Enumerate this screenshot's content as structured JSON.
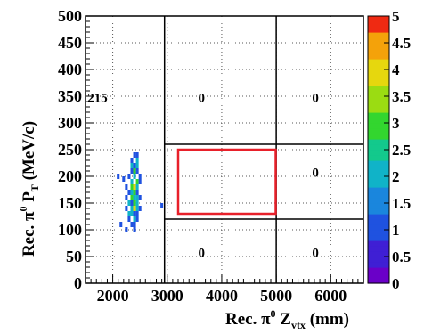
{
  "chart_data": {
    "type": "heatmap",
    "title": "",
    "xlabel": "Rec. π⁰ Z_vtx (mm)",
    "ylabel": "Rec. π⁰ P_T (MeV/c)",
    "xlabel_parts": {
      "main": "Rec. π",
      "sup": "0",
      "mid": " Z",
      "sub": "vtx",
      "tail": " (mm)"
    },
    "ylabel_parts": {
      "main": "Rec. π",
      "sup": "0",
      "mid": " P",
      "sub": "T",
      "tail": " (MeV/c)"
    },
    "xlim": [
      1500,
      6600
    ],
    "ylim": [
      0,
      500
    ],
    "zlim": [
      0,
      5
    ],
    "x_ticks": [
      2000,
      3000,
      4000,
      5000,
      6000
    ],
    "x_tick_labels": [
      "2000",
      "3000",
      "4000",
      "5000",
      "6000"
    ],
    "y_ticks": [
      0,
      50,
      100,
      150,
      200,
      250,
      300,
      350,
      400,
      450,
      500
    ],
    "y_tick_labels": [
      "0",
      "50",
      "100",
      "150",
      "200",
      "250",
      "300",
      "350",
      "400",
      "450",
      "500"
    ],
    "z_ticks": [
      0,
      0.5,
      1,
      1.5,
      2,
      2.5,
      3,
      3.5,
      4,
      4.5,
      5
    ],
    "z_tick_labels": [
      "0",
      "0.5",
      "1",
      "1.5",
      "2",
      "2.5",
      "3",
      "3.5",
      "4",
      "4.5",
      "5"
    ],
    "grid": true,
    "region_lines": {
      "vertical_x": [
        2950,
        5000
      ],
      "horizontal_y": [
        120,
        260
      ]
    },
    "signal_box": {
      "x": [
        3200,
        4990
      ],
      "y": [
        130,
        250
      ],
      "color": "#e8202a"
    },
    "region_counts": [
      {
        "label": "215",
        "x": 1720,
        "y": 345
      },
      {
        "label": "0",
        "x": 3630,
        "y": 345
      },
      {
        "label": "0",
        "x": 5720,
        "y": 345
      },
      {
        "label": "0",
        "x": 5720,
        "y": 205
      },
      {
        "label": "0",
        "x": 3630,
        "y": 55
      },
      {
        "label": "0",
        "x": 5720,
        "y": 55
      }
    ],
    "cell_size": {
      "dx": 50,
      "dy": 10
    },
    "cells": [
      {
        "x": 2400,
        "y": 240,
        "v": 1
      },
      {
        "x": 2450,
        "y": 240,
        "v": 1
      },
      {
        "x": 2350,
        "y": 230,
        "v": 1
      },
      {
        "x": 2450,
        "y": 230,
        "v": 2
      },
      {
        "x": 2350,
        "y": 220,
        "v": 2
      },
      {
        "x": 2400,
        "y": 220,
        "v": 1
      },
      {
        "x": 2450,
        "y": 220,
        "v": 2
      },
      {
        "x": 2350,
        "y": 210,
        "v": 1
      },
      {
        "x": 2400,
        "y": 210,
        "v": 3
      },
      {
        "x": 2450,
        "y": 210,
        "v": 1
      },
      {
        "x": 2100,
        "y": 200,
        "v": 1
      },
      {
        "x": 2300,
        "y": 200,
        "v": 1
      },
      {
        "x": 2400,
        "y": 200,
        "v": 2
      },
      {
        "x": 2500,
        "y": 200,
        "v": 1
      },
      {
        "x": 2200,
        "y": 195,
        "v": 1
      },
      {
        "x": 2350,
        "y": 190,
        "v": 2
      },
      {
        "x": 2450,
        "y": 190,
        "v": 3
      },
      {
        "x": 2500,
        "y": 190,
        "v": 1
      },
      {
        "x": 2250,
        "y": 180,
        "v": 1
      },
      {
        "x": 2350,
        "y": 180,
        "v": 3
      },
      {
        "x": 2400,
        "y": 180,
        "v": 4
      },
      {
        "x": 2450,
        "y": 180,
        "v": 2
      },
      {
        "x": 2300,
        "y": 170,
        "v": 1
      },
      {
        "x": 2350,
        "y": 170,
        "v": 2
      },
      {
        "x": 2400,
        "y": 170,
        "v": 3
      },
      {
        "x": 2450,
        "y": 170,
        "v": 1
      },
      {
        "x": 2250,
        "y": 160,
        "v": 1
      },
      {
        "x": 2350,
        "y": 160,
        "v": 3
      },
      {
        "x": 2400,
        "y": 160,
        "v": 2
      },
      {
        "x": 2450,
        "y": 160,
        "v": 2
      },
      {
        "x": 2500,
        "y": 160,
        "v": 1
      },
      {
        "x": 2300,
        "y": 150,
        "v": 2
      },
      {
        "x": 2350,
        "y": 150,
        "v": 1
      },
      {
        "x": 2400,
        "y": 150,
        "v": 3
      },
      {
        "x": 2450,
        "y": 150,
        "v": 2
      },
      {
        "x": 2250,
        "y": 140,
        "v": 1
      },
      {
        "x": 2350,
        "y": 140,
        "v": 2
      },
      {
        "x": 2400,
        "y": 140,
        "v": 4
      },
      {
        "x": 2450,
        "y": 140,
        "v": 2
      },
      {
        "x": 2500,
        "y": 140,
        "v": 1
      },
      {
        "x": 2300,
        "y": 130,
        "v": 2
      },
      {
        "x": 2350,
        "y": 130,
        "v": 2
      },
      {
        "x": 2400,
        "y": 130,
        "v": 1
      },
      {
        "x": 2450,
        "y": 130,
        "v": 1
      },
      {
        "x": 2300,
        "y": 120,
        "v": 1
      },
      {
        "x": 2400,
        "y": 120,
        "v": 2
      },
      {
        "x": 2450,
        "y": 120,
        "v": 1
      },
      {
        "x": 2150,
        "y": 110,
        "v": 1
      },
      {
        "x": 2350,
        "y": 110,
        "v": 1
      },
      {
        "x": 2400,
        "y": 110,
        "v": 1
      },
      {
        "x": 2250,
        "y": 100,
        "v": 1
      },
      {
        "x": 2400,
        "y": 100,
        "v": 1
      },
      {
        "x": 2900,
        "y": 145,
        "v": 1
      }
    ],
    "palette": [
      "#6a00c8",
      "#3f1fd4",
      "#1f52e0",
      "#1a86dd",
      "#10b3c8",
      "#13c98c",
      "#33d62f",
      "#9bdc12",
      "#e6d70e",
      "#f4a20a",
      "#ef2a12"
    ]
  }
}
